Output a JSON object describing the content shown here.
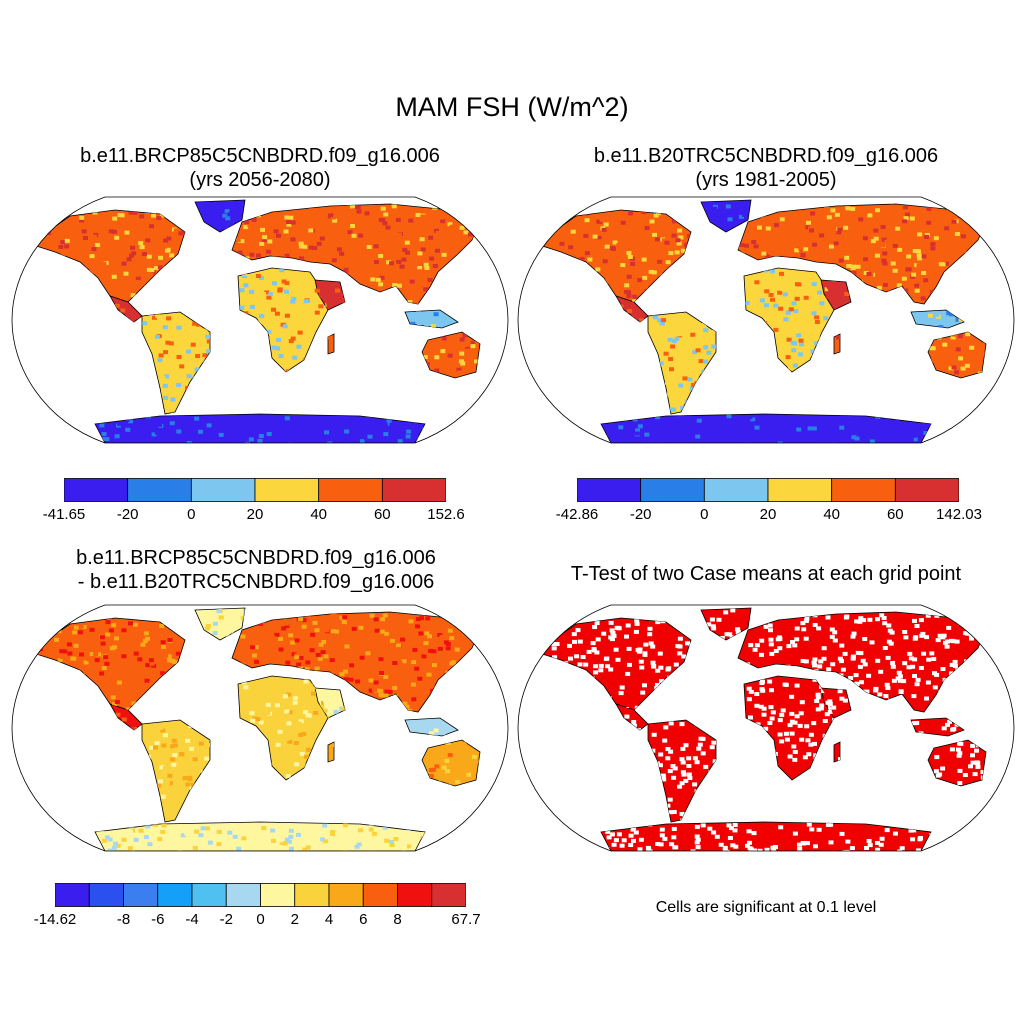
{
  "main_title": "MAM FSH (W/m^2)",
  "panels": [
    {
      "title_line1": "b.e11.BRCP85C5CNBDRD.f09_g16.006",
      "title_line2": "(yrs 2056-2080)",
      "colorbar": {
        "colors": [
          "#3a1ef0",
          "#2a7ee8",
          "#7cc6ef",
          "#fbd63c",
          "#f86010",
          "#d83030"
        ],
        "labels": [
          "-41.65",
          "-20",
          "0",
          "20",
          "40",
          "60",
          "152.6"
        ]
      }
    },
    {
      "title_line1": "b.e11.B20TRC5CNBDRD.f09_g16.006",
      "title_line2": "(yrs 1981-2005)",
      "colorbar": {
        "colors": [
          "#3a1ef0",
          "#2a7ee8",
          "#7cc6ef",
          "#fbd63c",
          "#f86010",
          "#d83030"
        ],
        "labels": [
          "-42.86",
          "-20",
          "0",
          "20",
          "40",
          "60",
          "142.03"
        ]
      }
    },
    {
      "title_line1": "b.e11.BRCP85C5CNBDRD.f09_g16.006",
      "title_line2": "- b.e11.B20TRC5CNBDRD.f09_g16.006",
      "colorbar": {
        "colors": [
          "#3a1ef0",
          "#2a50f0",
          "#3a7ef0",
          "#14a0f8",
          "#50c0f0",
          "#a8d8f0",
          "#fff6a0",
          "#fad23c",
          "#f8a818",
          "#f86010",
          "#f01010",
          "#d83030"
        ],
        "labels": [
          "-14.62",
          "",
          "-8",
          "-6",
          "-4",
          "-2",
          "0",
          "2",
          "4",
          "6",
          "8",
          "",
          "67.7"
        ]
      }
    },
    {
      "title_line1": "T-Test of two Case means at each grid point",
      "note": "Cells are significant at 0.1 level",
      "significance_color": "#f00000"
    }
  ]
}
